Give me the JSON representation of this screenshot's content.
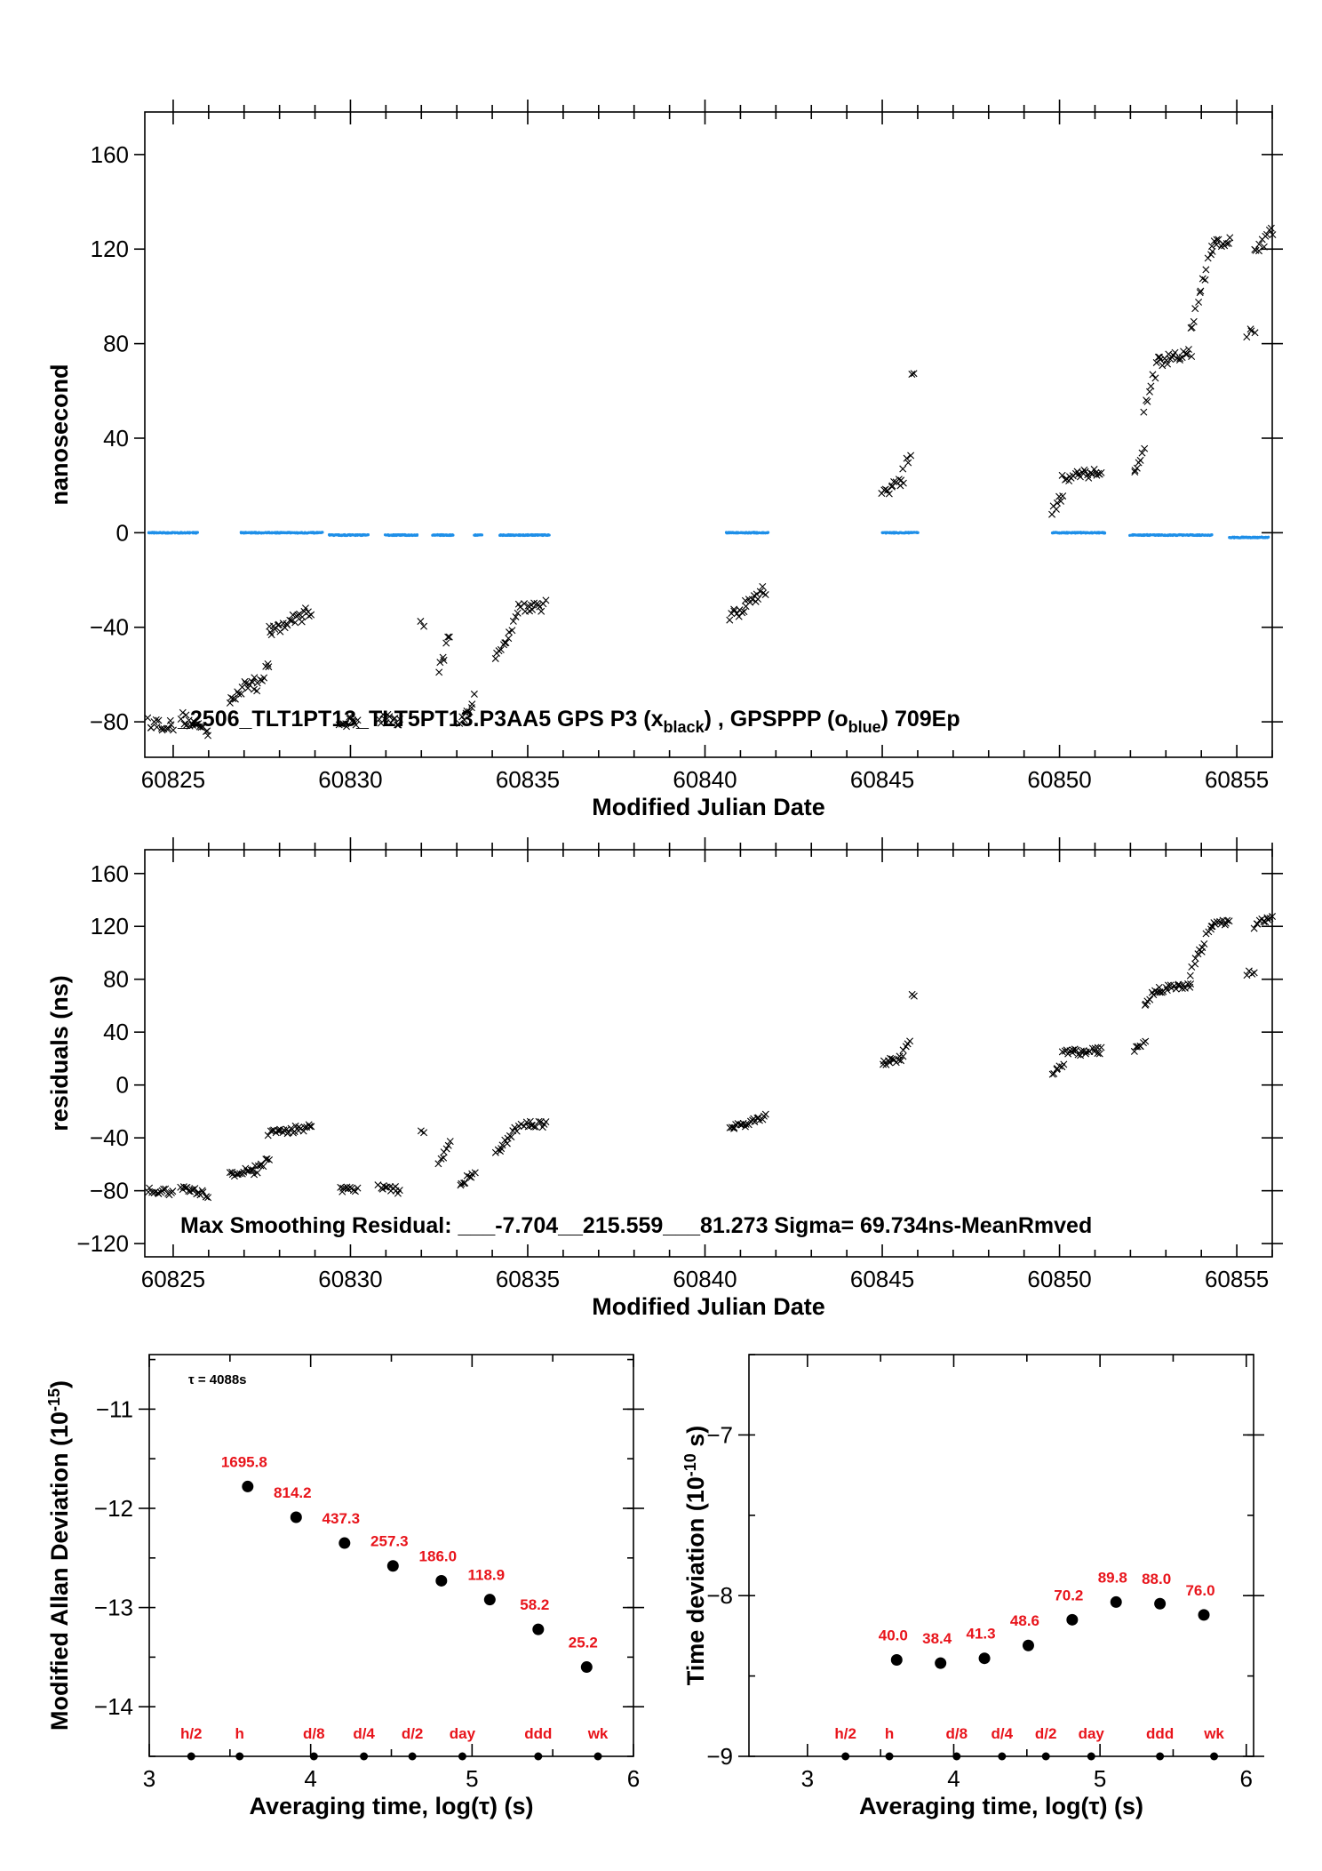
{
  "chart_data": [
    {
      "type": "scatter",
      "xlabel": "Modified Julian Date",
      "ylabel": "nanosecond",
      "xlim": [
        60824.2,
        60856.0
      ],
      "ylim": [
        -95,
        178
      ],
      "xticks": [
        60825,
        60830,
        60835,
        60840,
        60845,
        60850,
        60855
      ],
      "yticks": [
        -80,
        -40,
        0,
        40,
        80,
        120,
        160
      ],
      "annotation": {
        "text": "_2506_TLT1PT13_TLT5PT13.P3AA5     GPS P3 (x",
        "sub1": "black",
        "mid": ") ,  GPSPPP (o",
        "sub2": "blue",
        "tail": ")  709Ep"
      },
      "series": [
        {
          "name": "GPS P3",
          "marker": "x",
          "color": "#000000",
          "segments": [
            {
              "x": [
                60824.3,
                60825.0
              ],
              "y": [
                -80,
                -82
              ]
            },
            {
              "x": [
                60825.2,
                60826.0
              ],
              "y": [
                -78,
                -84
              ]
            },
            {
              "x": [
                60826.6,
                60827.3
              ],
              "y": [
                -70,
                -62
              ]
            },
            {
              "x": [
                60827.3,
                60827.7
              ],
              "y": [
                -66,
                -55
              ]
            },
            {
              "x": [
                60827.7,
                60828.9
              ],
              "y": [
                -42,
                -33
              ]
            },
            {
              "x": [
                60829.7,
                60830.2
              ],
              "y": [
                -80,
                -80
              ]
            },
            {
              "x": [
                60830.8,
                60831.4
              ],
              "y": [
                -78,
                -80
              ]
            },
            {
              "x": [
                60832.0,
                60832.05
              ],
              "y": [
                -38,
                -38
              ]
            },
            {
              "x": [
                60832.5,
                60832.8
              ],
              "y": [
                -60,
                -43
              ]
            },
            {
              "x": [
                60833.1,
                60833.5
              ],
              "y": [
                -80,
                -70
              ]
            },
            {
              "x": [
                60834.1,
                60834.8
              ],
              "y": [
                -55,
                -30
              ]
            },
            {
              "x": [
                60834.9,
                60835.5
              ],
              "y": [
                -31,
                -31
              ]
            },
            {
              "x": [
                60840.7,
                60841.7
              ],
              "y": [
                -36,
                -24
              ]
            },
            {
              "x": [
                60845.0,
                60845.6
              ],
              "y": [
                17,
                22
              ]
            },
            {
              "x": [
                60845.6,
                60845.8
              ],
              "y": [
                28,
                33
              ]
            },
            {
              "x": [
                60845.85,
                60845.9
              ],
              "y": [
                67,
                67
              ]
            },
            {
              "x": [
                60849.8,
                60850.1
              ],
              "y": [
                9,
                15
              ]
            },
            {
              "x": [
                60850.1,
                60851.2
              ],
              "y": [
                24,
                26
              ]
            },
            {
              "x": [
                60852.1,
                60852.4
              ],
              "y": [
                25,
                34
              ]
            },
            {
              "x": [
                60852.4,
                60852.8
              ],
              "y": [
                53,
                72
              ]
            },
            {
              "x": [
                60852.8,
                60853.7
              ],
              "y": [
                72,
                76
              ]
            },
            {
              "x": [
                60853.7,
                60854.3
              ],
              "y": [
                85,
                120
              ]
            },
            {
              "x": [
                60854.3,
                60854.8
              ],
              "y": [
                121,
                124
              ]
            },
            {
              "x": [
                60855.3,
                60855.5
              ],
              "y": [
                84,
                84
              ]
            },
            {
              "x": [
                60855.5,
                60856.0
              ],
              "y": [
                118,
                128
              ]
            }
          ]
        },
        {
          "name": "GPSPPP",
          "marker": "o",
          "color": "#1e8fe8",
          "segments": [
            {
              "x": [
                60824.3,
                60825.7
              ],
              "y": [
                0,
                0
              ]
            },
            {
              "x": [
                60826.9,
                60829.2
              ],
              "y": [
                0,
                0
              ]
            },
            {
              "x": [
                60829.4,
                60830.5
              ],
              "y": [
                -1,
                -1
              ]
            },
            {
              "x": [
                60831.0,
                60831.9
              ],
              "y": [
                -1,
                -1
              ]
            },
            {
              "x": [
                60832.3,
                60832.9
              ],
              "y": [
                -1,
                -1
              ]
            },
            {
              "x": [
                60833.5,
                60833.7
              ],
              "y": [
                -1,
                -1
              ]
            },
            {
              "x": [
                60834.2,
                60835.6
              ],
              "y": [
                -1,
                -1
              ]
            },
            {
              "x": [
                60840.6,
                60841.8
              ],
              "y": [
                0,
                0
              ]
            },
            {
              "x": [
                60845.0,
                60846.0
              ],
              "y": [
                0,
                0
              ]
            },
            {
              "x": [
                60849.8,
                60851.3
              ],
              "y": [
                0,
                0
              ]
            },
            {
              "x": [
                60852.0,
                60854.3
              ],
              "y": [
                -1,
                -1
              ]
            },
            {
              "x": [
                60854.8,
                60855.9
              ],
              "y": [
                -2,
                -2
              ]
            }
          ]
        }
      ]
    },
    {
      "type": "scatter",
      "xlabel": "Modified Julian Date",
      "ylabel": "residuals (ns)",
      "xlim": [
        60824.2,
        60856.0
      ],
      "ylim": [
        -130,
        178
      ],
      "xticks": [
        60825,
        60830,
        60835,
        60840,
        60845,
        60850,
        60855
      ],
      "yticks": [
        -120,
        -80,
        -40,
        0,
        40,
        80,
        120,
        160
      ],
      "annotation": "Max Smoothing Residual:  ___-7.704__215.559___81.273  Sigma= 69.734ns-MeanRmved",
      "series": [
        {
          "name": "residuals",
          "marker": "x",
          "color": "#000000",
          "segments": [
            {
              "x": [
                60824.3,
                60825.0
              ],
              "y": [
                -79,
                -82
              ]
            },
            {
              "x": [
                60825.2,
                60826.0
              ],
              "y": [
                -78,
                -83
              ]
            },
            {
              "x": [
                60826.6,
                60827.3
              ],
              "y": [
                -68,
                -62
              ]
            },
            {
              "x": [
                60827.3,
                60827.7
              ],
              "y": [
                -66,
                -55
              ]
            },
            {
              "x": [
                60827.7,
                60828.9
              ],
              "y": [
                -36,
                -32
              ]
            },
            {
              "x": [
                60829.7,
                60830.2
              ],
              "y": [
                -79,
                -79
              ]
            },
            {
              "x": [
                60830.8,
                60831.4
              ],
              "y": [
                -77,
                -80
              ]
            },
            {
              "x": [
                60832.0,
                60832.05
              ],
              "y": [
                -37,
                -37
              ]
            },
            {
              "x": [
                60832.5,
                60832.8
              ],
              "y": [
                -58,
                -42
              ]
            },
            {
              "x": [
                60833.1,
                60833.5
              ],
              "y": [
                -78,
                -64
              ]
            },
            {
              "x": [
                60834.1,
                60834.8
              ],
              "y": [
                -52,
                -30
              ]
            },
            {
              "x": [
                60834.9,
                60835.5
              ],
              "y": [
                -30,
                -30
              ]
            },
            {
              "x": [
                60840.7,
                60841.7
              ],
              "y": [
                -34,
                -24
              ]
            },
            {
              "x": [
                60845.0,
                60845.6
              ],
              "y": [
                16,
                20
              ]
            },
            {
              "x": [
                60845.6,
                60845.8
              ],
              "y": [
                27,
                32
              ]
            },
            {
              "x": [
                60845.85,
                60845.9
              ],
              "y": [
                67,
                67
              ]
            },
            {
              "x": [
                60849.8,
                60850.1
              ],
              "y": [
                10,
                15
              ]
            },
            {
              "x": [
                60850.1,
                60851.2
              ],
              "y": [
                24,
                26
              ]
            },
            {
              "x": [
                60852.1,
                60852.4
              ],
              "y": [
                25,
                34
              ]
            },
            {
              "x": [
                60852.4,
                60852.8
              ],
              "y": [
                62,
                74
              ]
            },
            {
              "x": [
                60852.8,
                60853.7
              ],
              "y": [
                72,
                75
              ]
            },
            {
              "x": [
                60853.7,
                60854.3
              ],
              "y": [
                85,
                121
              ]
            },
            {
              "x": [
                60854.3,
                60854.8
              ],
              "y": [
                121,
                123
              ]
            },
            {
              "x": [
                60855.3,
                60855.5
              ],
              "y": [
                85,
                85
              ]
            },
            {
              "x": [
                60855.5,
                60856.0
              ],
              "y": [
                120,
                128
              ]
            }
          ]
        }
      ]
    },
    {
      "type": "scatter",
      "xlabel": "Averaging time, log(τ) (s)",
      "ylabel": "Modified Allan Deviation (10",
      "ylabel_sup": "-15",
      "ylabel_tail": ")",
      "xlim": [
        3,
        6
      ],
      "ylim": [
        -14.5,
        -10.45
      ],
      "xticks": [
        3,
        4,
        5,
        6
      ],
      "yticks": [
        -14,
        -13,
        -12,
        -11
      ],
      "annotation": "τ = 4088s",
      "points": {
        "x": [
          3.61,
          3.91,
          4.21,
          4.51,
          4.81,
          5.11,
          5.41,
          5.71
        ],
        "y": [
          -11.78,
          -12.09,
          -12.35,
          -12.58,
          -12.73,
          -12.92,
          -13.22,
          -13.6
        ],
        "labels": [
          "1695.8",
          "814.2",
          "437.3",
          "257.3",
          "186.0",
          "118.9",
          "58.2",
          "25.2"
        ]
      },
      "markers": {
        "x": [
          3.26,
          3.56,
          4.02,
          4.33,
          4.63,
          4.94,
          5.41,
          5.78
        ],
        "labels": [
          "h/2",
          "h",
          "d/8",
          "d/4",
          "d/2",
          "day",
          "ddd",
          "wk"
        ]
      }
    },
    {
      "type": "scatter",
      "xlabel": "Averaging time, log(τ) (s)",
      "ylabel": "Time deviation (10",
      "ylabel_sup": "-10",
      "ylabel_tail": " s)",
      "xlim": [
        2.6,
        6.05
      ],
      "ylim": [
        -9,
        -6.5
      ],
      "xticks": [
        3,
        4,
        5,
        6
      ],
      "yticks": [
        -9,
        -8,
        -7
      ],
      "points": {
        "x": [
          3.61,
          3.91,
          4.21,
          4.51,
          4.81,
          5.11,
          5.41,
          5.71
        ],
        "y": [
          -8.4,
          -8.42,
          -8.39,
          -8.31,
          -8.15,
          -8.04,
          -8.05,
          -8.12
        ],
        "labels": [
          "40.0",
          "38.4",
          "41.3",
          "48.6",
          "70.2",
          "89.8",
          "88.0",
          "76.0"
        ]
      },
      "markers": {
        "x": [
          3.26,
          3.56,
          4.02,
          4.33,
          4.63,
          4.94,
          5.41,
          5.78
        ],
        "labels": [
          "h/2",
          "h",
          "d/8",
          "d/4",
          "d/2",
          "day",
          "ddd",
          "wk"
        ]
      }
    }
  ]
}
